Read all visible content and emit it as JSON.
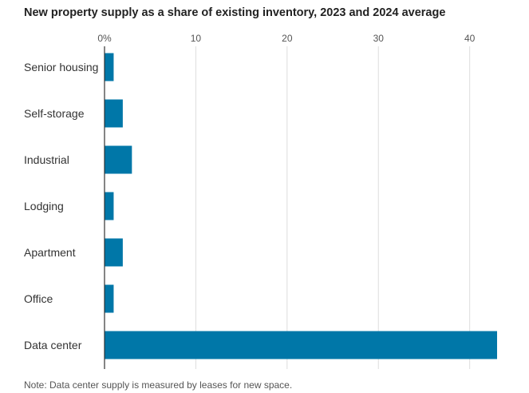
{
  "chart_data": {
    "type": "bar",
    "orientation": "horizontal",
    "title": "New property supply as a share of existing inventory, 2023 and 2024 average",
    "note": "Note: Data center supply is measured by leases for new space.",
    "categories": [
      "Senior housing",
      "Self-storage",
      "Industrial",
      "Lodging",
      "Apartment",
      "Office",
      "Data center"
    ],
    "values": [
      1.0,
      2.0,
      3.0,
      1.0,
      2.0,
      1.0,
      43.0
    ],
    "x_ticks": [
      0,
      10,
      20,
      30,
      40
    ],
    "x_tick_labels": [
      "0%",
      "10",
      "20",
      "30",
      "40"
    ],
    "xlim": [
      0,
      43
    ],
    "xlabel": "",
    "ylabel": "",
    "grid": true,
    "bar_color": "#0077a8",
    "grid_color": "#dddddd",
    "axis_color": "#333333"
  }
}
